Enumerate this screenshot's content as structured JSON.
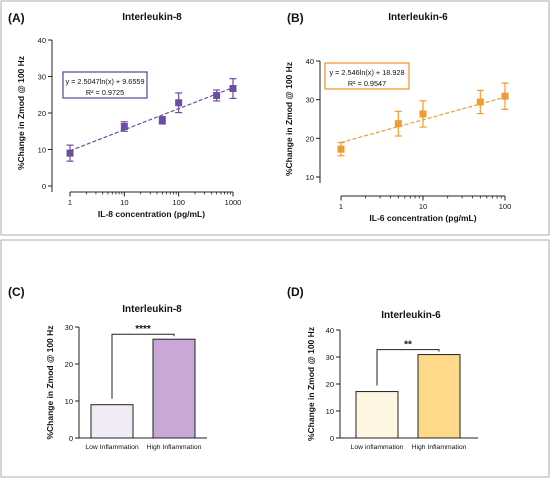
{
  "chart_data": [
    {
      "panel": "(A)",
      "type": "scatter",
      "title": "Interleukin-8",
      "xlabel": "IL-8 concentration (pg/mL)",
      "ylabel": "%Change in Zmod @ 100 Hz",
      "xscale": "log",
      "xlim": [
        1,
        1000
      ],
      "ylim": [
        0,
        40
      ],
      "xticks": [
        1,
        10,
        100,
        1000
      ],
      "xtick_labels": [
        "1",
        "10",
        "100",
        "1000"
      ],
      "yticks": [
        0,
        10,
        20,
        30,
        40
      ],
      "series": [
        {
          "x": [
            1,
            10,
            50,
            100,
            500,
            1000
          ],
          "y": [
            9.0,
            16.3,
            18.0,
            22.8,
            24.8,
            26.7
          ],
          "err": [
            2.2,
            1.3,
            1.0,
            2.7,
            1.5,
            2.7
          ],
          "color": "#6b4ea0",
          "fit": {
            "a": 2.5047,
            "b": 9.6559,
            "equation": "y = 2.5047ln(x) + 9.6559",
            "r2": "R² = 0.9725"
          }
        }
      ],
      "annotation_color": "#6b4ea0",
      "annotation_position": "top-left"
    },
    {
      "panel": "(B)",
      "type": "scatter",
      "title": "Interleukin-6",
      "xlabel": "IL-6 concentration (pg/mL)",
      "ylabel": "%Change in Zmod @ 100 Hz",
      "xscale": "log",
      "xlim": [
        1,
        100
      ],
      "ylim": [
        10,
        40
      ],
      "xticks": [
        1,
        10,
        100
      ],
      "xtick_labels": [
        "1",
        "10",
        "100"
      ],
      "yticks": [
        10,
        20,
        30,
        40
      ],
      "series": [
        {
          "x": [
            1,
            5,
            10,
            50,
            100
          ],
          "y": [
            17.2,
            23.8,
            26.3,
            29.4,
            30.9
          ],
          "err": [
            1.7,
            3.2,
            3.4,
            3.0,
            3.4
          ],
          "color": "#f29b30",
          "fit": {
            "a": 2.546,
            "b": 18.928,
            "equation": "y = 2.546ln(x) + 18.928",
            "r2": "R² = 0.9547"
          }
        }
      ],
      "annotation_color": "#f29b30",
      "annotation_position": "top-left"
    },
    {
      "panel": "(C)",
      "type": "bar",
      "title": "Interleukin-8",
      "ylabel": "%Change in Zmod @ 100 Hz",
      "ylim": [
        0,
        30
      ],
      "yticks": [
        0,
        10,
        20,
        30
      ],
      "categories": [
        "Low Inflammation",
        "High Inflammation"
      ],
      "values": [
        9.0,
        26.7
      ],
      "colors": [
        "#f1ebf6",
        "#c9a8d7"
      ],
      "significance": "****"
    },
    {
      "panel": "(D)",
      "type": "bar",
      "title": "Interleukin-6",
      "ylabel": "%Change in Zmod @ 100 Hz",
      "ylim": [
        0,
        40
      ],
      "yticks": [
        0,
        10,
        20,
        30,
        40
      ],
      "categories": [
        "Low inflammation",
        "High Inflammation"
      ],
      "values": [
        17.2,
        30.9
      ],
      "colors": [
        "#fff5e3",
        "#ffd98a"
      ],
      "significance": "**"
    }
  ]
}
